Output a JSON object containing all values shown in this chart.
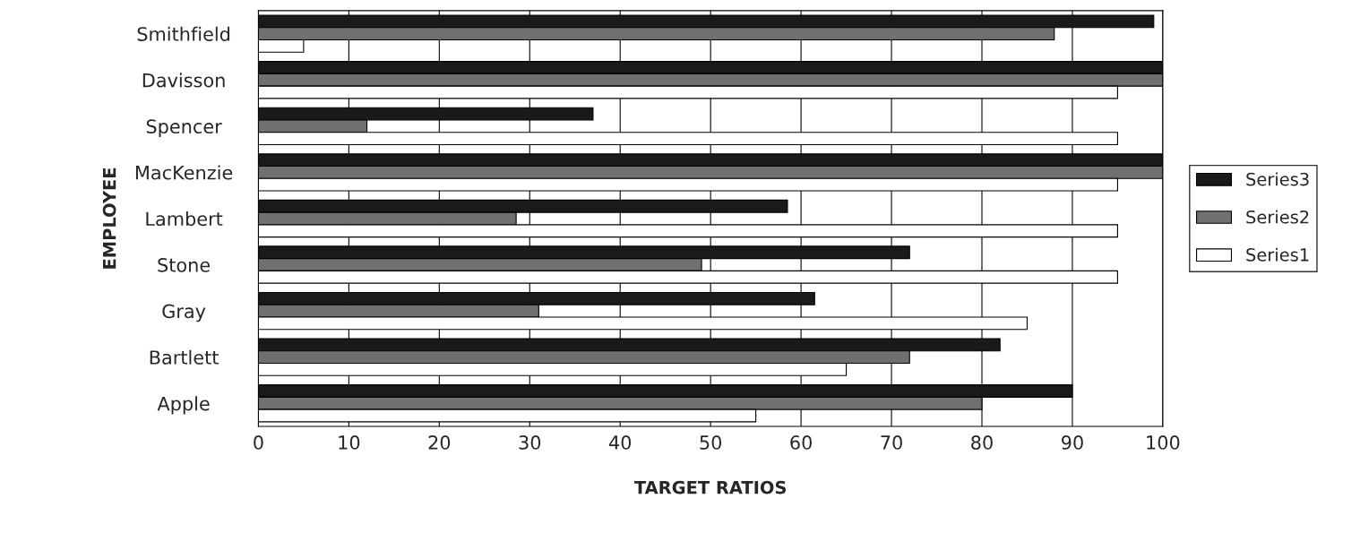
{
  "chart_data": {
    "type": "bar",
    "orientation": "horizontal",
    "xlabel": "TARGET RATIOS",
    "ylabel": "EMPLOYEE",
    "categories": [
      "Smithfield",
      "Davisson",
      "Spencer",
      "MacKenzie",
      "Lambert",
      "Stone",
      "Gray",
      "Bartlett",
      "Apple"
    ],
    "series": [
      {
        "name": "Series3",
        "color": "#1a1a1a",
        "values": [
          99,
          100,
          37,
          100,
          58.5,
          72,
          61.5,
          82,
          90
        ]
      },
      {
        "name": "Series2",
        "color": "#707070",
        "values": [
          88,
          100,
          12,
          100,
          28.5,
          49,
          31,
          72,
          80
        ]
      },
      {
        "name": "Series1",
        "color": "#ffffff",
        "values": [
          5,
          95,
          95,
          95,
          95,
          95,
          85,
          65,
          55
        ]
      }
    ],
    "xlim": [
      0,
      100
    ],
    "xticks": [
      0,
      10,
      20,
      30,
      40,
      50,
      60,
      70,
      80,
      90,
      100
    ],
    "grid": "x",
    "legend": "right"
  }
}
